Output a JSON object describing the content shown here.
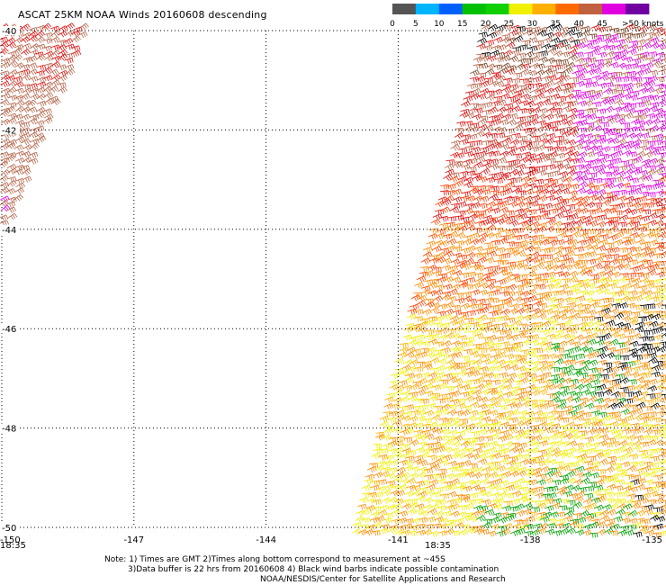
{
  "header": {
    "title": "ASCAT 25KM NOAA Winds 20160608 descending"
  },
  "legend": {
    "unit": "knots",
    "bins": [
      {
        "label": "0",
        "color": "#555555"
      },
      {
        "label": "5",
        "color": "#00b4ff"
      },
      {
        "label": "10",
        "color": "#0060ff"
      },
      {
        "label": "15",
        "color": "#00c000"
      },
      {
        "label": "20",
        "color": "#10d000"
      },
      {
        "label": "25",
        "color": "#f0f000"
      },
      {
        "label": "30",
        "color": "#ffb000"
      },
      {
        "label": "35",
        "color": "#ff6a00"
      },
      {
        "label": "40",
        "color": "#c06040"
      },
      {
        "label": "45",
        "color": "#e000e0"
      },
      {
        "label": ">50",
        "color": "#7000a0"
      }
    ],
    "last_label": ">50 knots"
  },
  "map": {
    "lon_ticks": [
      "-150",
      "-147",
      "-144",
      "-141",
      "-138",
      "-135"
    ],
    "lat_ticks": [
      "-40",
      "-42",
      "-44",
      "-46",
      "-48",
      "-50"
    ],
    "pass_times": [
      {
        "label": "18:35",
        "lon": -150
      },
      {
        "label": "18:35",
        "lon": -140.1
      }
    ],
    "time_color": "#8000a0",
    "wind_colors": {
      "strong_magenta": "#e000e0",
      "dark_brown": "#7a3e1e",
      "brown": "#b5654a",
      "red": "#e01010",
      "red_orange": "#ff4000",
      "orange": "#ff8a00",
      "amber": "#ffb000",
      "yellow": "#f0f000",
      "green": "#00a000",
      "black_contaminated": "#000000"
    }
  },
  "notes": {
    "line1": "Note: 1) Times are GMT 2)Times along bottom correspond to measurement at ~45S",
    "line2": "3)Data buffer is 22 hrs from 20160608 4) Black wind barbs indicate possible contamination",
    "line3": "NOAA/NESDIS/Center for Satellite Applications and Research"
  }
}
